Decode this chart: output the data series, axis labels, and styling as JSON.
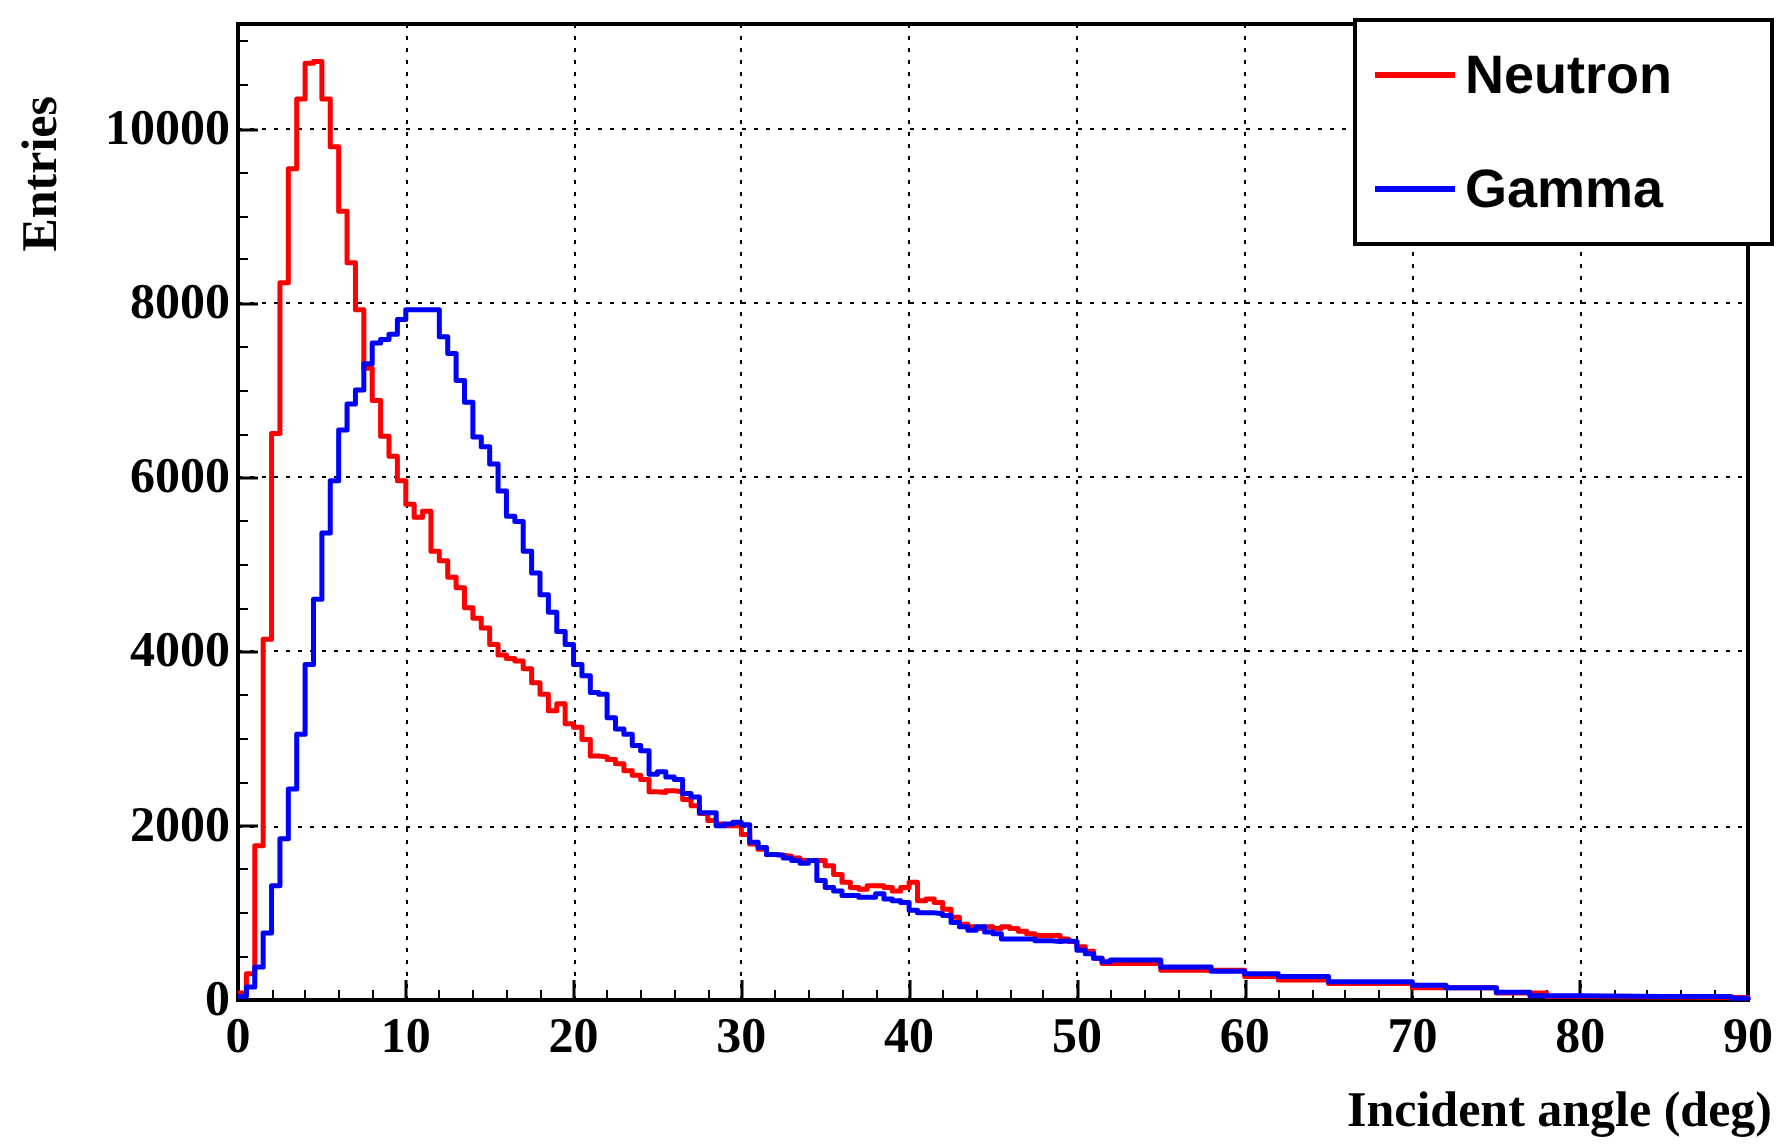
{
  "chart_data": {
    "type": "step",
    "xlabel": "Incident angle (deg)",
    "ylabel": "Entries",
    "xlim": [
      0,
      90
    ],
    "xticks": [
      0,
      10,
      20,
      30,
      40,
      50,
      60,
      70,
      80,
      90
    ],
    "ylim": [
      0,
      11200
    ],
    "yticks": [
      0,
      2000,
      4000,
      6000,
      8000,
      10000
    ],
    "grid": true,
    "legend": "top right",
    "line_style": "solid",
    "marker": "none",
    "series": [
      {
        "name": "Neutron",
        "color": "#ff0000",
        "x": [
          0,
          0.5,
          1,
          1.5,
          2,
          2.5,
          3,
          3.5,
          4,
          4.5,
          5,
          5.5,
          6,
          6.5,
          7,
          7.5,
          8,
          8.5,
          9,
          9.5,
          10,
          10.5,
          11,
          11.5,
          12,
          12.5,
          13,
          13.5,
          14,
          14.5,
          15,
          15.5,
          16,
          16.5,
          17,
          17.5,
          18,
          18.5,
          19,
          19.5,
          20,
          20.5,
          21,
          21.5,
          22,
          22.5,
          23,
          23.5,
          24,
          24.5,
          25,
          25.5,
          26,
          26.5,
          27,
          27.5,
          28,
          28.5,
          29,
          29.5,
          30,
          30.5,
          31,
          31.5,
          32,
          32.5,
          33,
          33.5,
          34,
          34.5,
          35,
          35.5,
          36,
          36.5,
          37,
          37.5,
          38,
          38.5,
          39,
          39.5,
          40,
          40.5,
          41,
          41.5,
          42,
          42.5,
          43,
          43.5,
          44,
          44.5,
          45,
          45.5,
          46,
          46.5,
          47,
          47.5,
          48,
          48.5,
          49,
          49.5,
          50,
          50.5,
          51,
          51.5,
          52,
          55,
          60,
          62,
          65,
          70,
          75,
          78,
          80,
          90
        ],
        "values": [
          80,
          300,
          1770,
          4140,
          6500,
          8230,
          9540,
          10340,
          10750,
          10770,
          10340,
          9790,
          9050,
          8460,
          7920,
          7250,
          6880,
          6470,
          6240,
          5960,
          5690,
          5540,
          5610,
          5150,
          5040,
          4850,
          4730,
          4500,
          4380,
          4270,
          4080,
          3960,
          3920,
          3890,
          3800,
          3640,
          3510,
          3320,
          3400,
          3170,
          3130,
          2990,
          2800,
          2790,
          2760,
          2710,
          2630,
          2580,
          2530,
          2390,
          2380,
          2400,
          2390,
          2300,
          2230,
          2140,
          2060,
          2020,
          2000,
          2000,
          1900,
          1790,
          1730,
          1670,
          1660,
          1650,
          1630,
          1600,
          1600,
          1600,
          1540,
          1440,
          1350,
          1290,
          1270,
          1310,
          1310,
          1290,
          1250,
          1290,
          1350,
          1140,
          1160,
          1120,
          1040,
          950,
          870,
          840,
          820,
          840,
          820,
          840,
          820,
          790,
          760,
          740,
          740,
          740,
          700,
          670,
          610,
          560,
          480,
          420,
          420,
          340,
          270,
          230,
          190,
          140,
          80,
          40,
          30,
          0
        ]
      },
      {
        "name": "Gamma",
        "color": "#0000ff",
        "x": [
          0,
          0.5,
          1,
          1.5,
          2,
          2.5,
          3,
          3.5,
          4,
          4.5,
          5,
          5.5,
          6,
          6.5,
          7,
          7.5,
          8,
          8.5,
          9,
          9.5,
          10,
          10.5,
          11,
          11.5,
          12,
          12.5,
          13,
          13.5,
          14,
          14.5,
          15,
          15.5,
          16,
          16.5,
          17,
          17.5,
          18,
          18.5,
          19,
          19.5,
          20,
          20.5,
          21,
          21.5,
          22,
          22.5,
          23,
          23.5,
          24,
          24.5,
          25,
          25.5,
          26,
          26.5,
          27,
          27.5,
          28,
          28.5,
          29,
          29.5,
          30,
          30.5,
          31,
          31.5,
          32,
          32.5,
          33,
          33.5,
          34,
          34.5,
          35,
          35.5,
          36,
          36.5,
          37,
          37.5,
          38,
          38.5,
          39,
          39.5,
          40,
          40.5,
          41,
          41.5,
          42,
          42.5,
          43,
          43.5,
          44,
          44.5,
          45,
          45.5,
          46,
          46.5,
          47,
          47.5,
          48,
          48.5,
          49,
          49.5,
          50,
          50.5,
          51,
          51.5,
          52,
          55,
          58,
          60,
          62,
          65,
          70,
          72,
          75,
          77,
          80,
          85,
          89,
          90
        ],
        "values": [
          40,
          150,
          380,
          770,
          1310,
          1850,
          2420,
          3050,
          3850,
          4600,
          5360,
          5960,
          6540,
          6840,
          7000,
          7300,
          7540,
          7580,
          7640,
          7810,
          7920,
          7920,
          7920,
          7920,
          7610,
          7420,
          7110,
          6860,
          6460,
          6350,
          6150,
          5840,
          5550,
          5490,
          5150,
          4900,
          4650,
          4450,
          4230,
          4080,
          3850,
          3720,
          3530,
          3510,
          3240,
          3110,
          3050,
          2920,
          2860,
          2590,
          2620,
          2560,
          2530,
          2370,
          2330,
          2150,
          2150,
          2000,
          2020,
          2040,
          2010,
          1810,
          1750,
          1670,
          1660,
          1630,
          1600,
          1570,
          1600,
          1370,
          1290,
          1250,
          1200,
          1200,
          1180,
          1180,
          1220,
          1160,
          1140,
          1120,
          1030,
          1000,
          1000,
          990,
          970,
          890,
          840,
          800,
          840,
          780,
          760,
          700,
          700,
          700,
          700,
          680,
          680,
          670,
          680,
          670,
          570,
          530,
          480,
          440,
          460,
          380,
          330,
          300,
          270,
          210,
          170,
          140,
          90,
          50,
          40,
          40,
          20,
          0
        ]
      }
    ]
  }
}
